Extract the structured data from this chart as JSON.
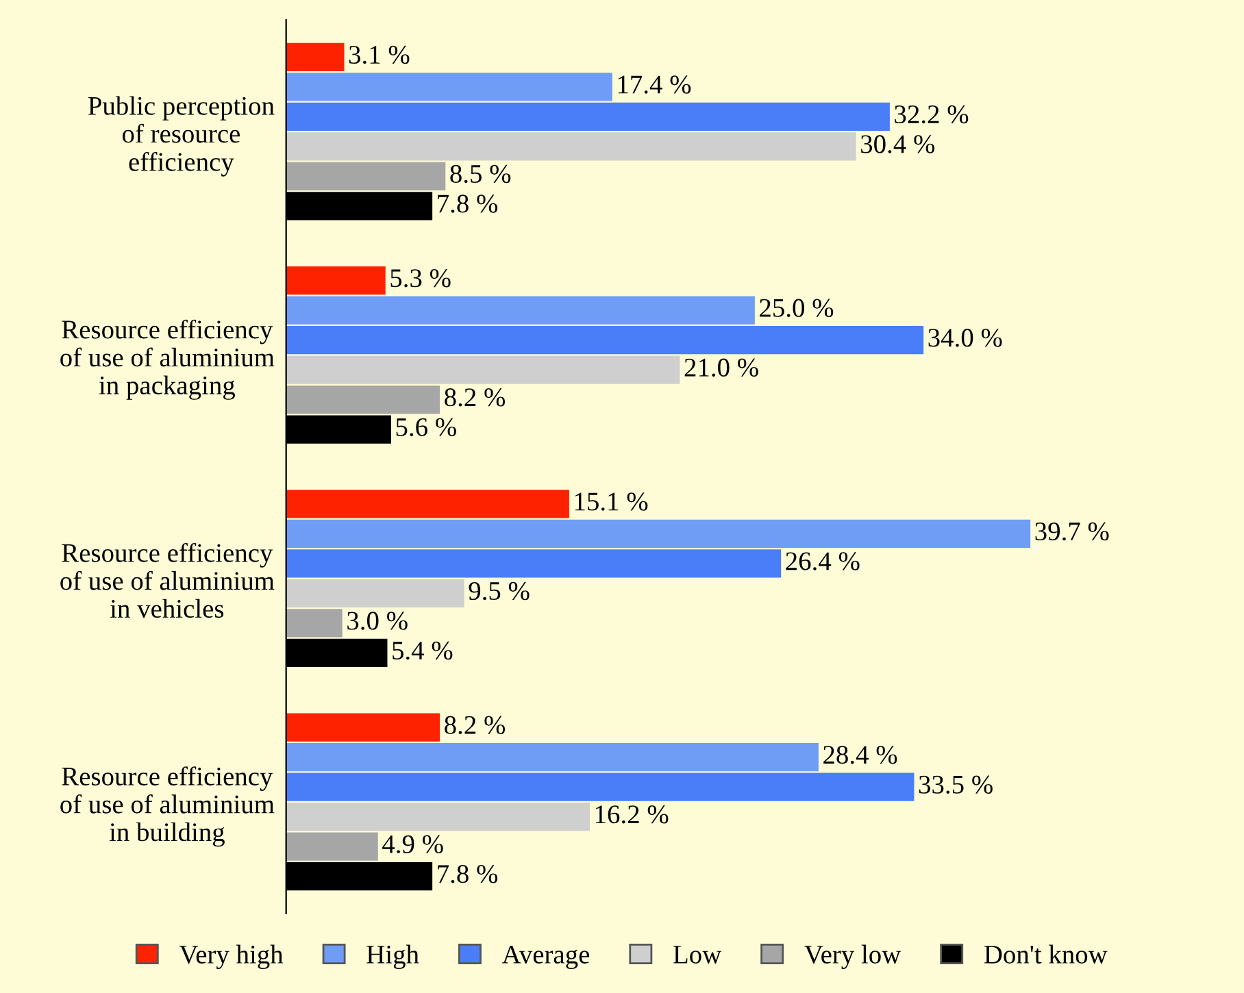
{
  "chart_data": {
    "type": "bar",
    "orientation": "horizontal",
    "legend": "bottom",
    "grid": false,
    "categories": [
      "Public perception\nof resource\nefficiency",
      "Resource efficiency\nof use of aluminium\nin packaging",
      "Resource efficiency\nof use of aluminium\nin vehicles",
      "Resource efficiency\nof use of aluminium\nin building"
    ],
    "series": [
      {
        "name": "Very high",
        "color": "#ff2200",
        "values": [
          3.1,
          5.3,
          15.1,
          8.2
        ],
        "value_labels": [
          "3.1 %",
          "5.3 %",
          "15.1 %",
          "8.2 %"
        ]
      },
      {
        "name": "High",
        "color": "#6f9cf5",
        "values": [
          17.4,
          25.0,
          39.7,
          28.4
        ],
        "value_labels": [
          "17.4 %",
          "25.0 %",
          "39.7 %",
          "28.4 %"
        ]
      },
      {
        "name": "Average",
        "color": "#4a7ef8",
        "values": [
          32.2,
          34.0,
          26.4,
          33.5
        ],
        "value_labels": [
          "32.2 %",
          "34.0 %",
          "26.4 %",
          "33.5 %"
        ]
      },
      {
        "name": "Low",
        "color": "#cfcfcf",
        "values": [
          30.4,
          21.0,
          9.5,
          16.2
        ],
        "value_labels": [
          "30.4 %",
          "21.0 %",
          "9.5 %",
          "16.2 %"
        ]
      },
      {
        "name": "Very low",
        "color": "#a6a6a6",
        "values": [
          8.5,
          8.2,
          3.0,
          4.9
        ],
        "value_labels": [
          "8.5 %",
          "8.2 %",
          "3.0 %",
          "4.9 %"
        ]
      },
      {
        "name": "Don't know",
        "color": "#000000",
        "values": [
          7.8,
          5.6,
          5.4,
          7.8
        ],
        "value_labels": [
          "7.8 %",
          "5.6 %",
          "5.4 %",
          "7.8 %"
        ]
      }
    ]
  }
}
